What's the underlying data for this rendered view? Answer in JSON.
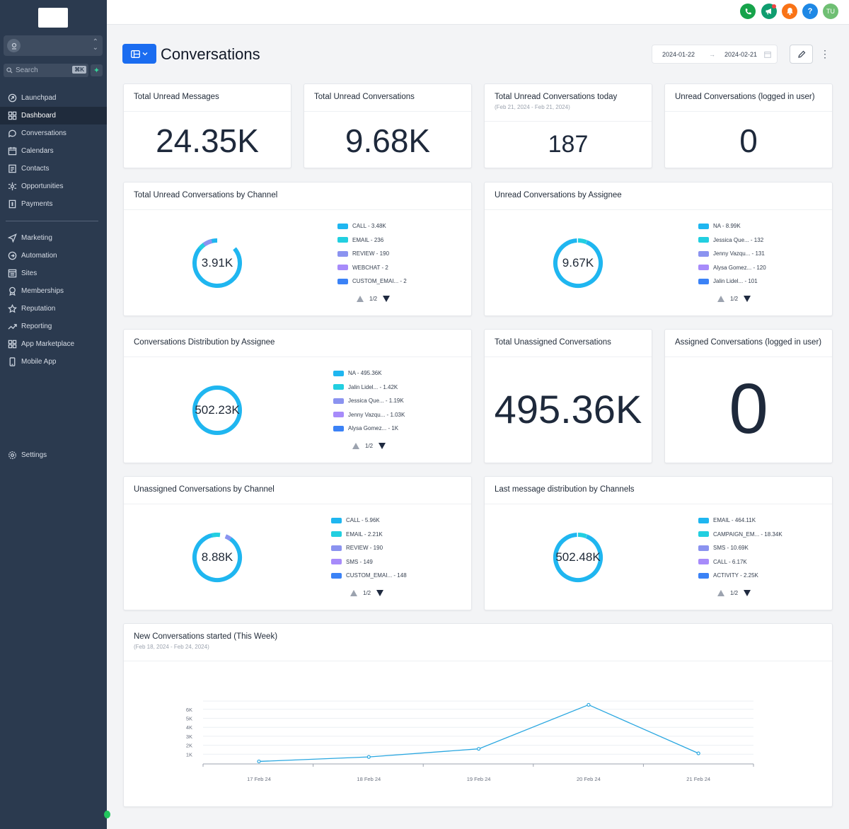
{
  "sidebar": {
    "search_placeholder": "Search",
    "search_shortcut": "⌘K",
    "items": [
      {
        "label": "Launchpad"
      },
      {
        "label": "Dashboard"
      },
      {
        "label": "Conversations"
      },
      {
        "label": "Calendars"
      },
      {
        "label": "Contacts"
      },
      {
        "label": "Opportunities"
      },
      {
        "label": "Payments"
      }
    ],
    "items2": [
      {
        "label": "Marketing"
      },
      {
        "label": "Automation"
      },
      {
        "label": "Sites"
      },
      {
        "label": "Memberships"
      },
      {
        "label": "Reputation"
      },
      {
        "label": "Reporting"
      },
      {
        "label": "App Marketplace"
      },
      {
        "label": "Mobile App"
      }
    ],
    "settings_label": "Settings"
  },
  "topbar": {
    "help_label": "?",
    "avatar_initials": "TU",
    "colors": {
      "phone": "#16a34a",
      "announce": "#0f9d6f",
      "bell": "#f97316",
      "help": "#1e88e5",
      "avatar": "#6fbf73"
    }
  },
  "header": {
    "title": "Conversations",
    "date_start": "2024-01-22",
    "date_end": "2024-02-21"
  },
  "stats": {
    "unread_messages": {
      "title": "Total Unread Messages",
      "value": "24.35K"
    },
    "unread_conversations": {
      "title": "Total Unread Conversations",
      "value": "9.68K"
    },
    "unread_today": {
      "title": "Total Unread Conversations today",
      "subtitle": "(Feb 21, 2024 - Feb 21, 2024)",
      "value": "187"
    },
    "unread_logged": {
      "title": "Unread Conversations (logged in user)",
      "value": "0"
    },
    "unassigned_total": {
      "title": "Total Unassigned Conversations",
      "value": "495.36K"
    },
    "assigned_logged": {
      "title": "Assigned Conversations (logged in user)",
      "value": "0"
    }
  },
  "donuts": {
    "by_channel": {
      "title": "Total Unread Conversations by Channel",
      "center": "3.91K",
      "legend": [
        "CALL - 3.48K",
        "EMAIL - 236",
        "REVIEW - 190",
        "WEBCHAT - 2",
        "CUSTOM_EMAI... - 2"
      ],
      "pager": "1/2"
    },
    "by_assignee": {
      "title": "Unread Conversations by Assignee",
      "center": "9.67K",
      "legend": [
        "NA - 8.99K",
        "Jessica Que... - 132",
        "Jenny Vazqu... - 131",
        "Alysa Gomez... - 120",
        "Jalin Lidel... - 101"
      ],
      "pager": "1/2"
    },
    "distribution": {
      "title": "Conversations Distribution by Assignee",
      "center": "502.23K",
      "legend": [
        "NA - 495.36K",
        "Jalin Lidel... - 1.42K",
        "Jessica Que... - 1.19K",
        "Jenny Vazqu... - 1.03K",
        "Alysa Gomez... - 1K"
      ],
      "pager": "1/2"
    },
    "unassigned_channel": {
      "title": "Unassigned Conversations by Channel",
      "center": "8.88K",
      "legend": [
        "CALL - 5.96K",
        "EMAIL - 2.21K",
        "REVIEW - 190",
        "SMS - 149",
        "CUSTOM_EMAI... - 148"
      ],
      "pager": "1/2"
    },
    "last_message": {
      "title": "Last message distribution by Channels",
      "center": "502.48K",
      "legend": [
        "EMAIL - 464.11K",
        "CAMPAIGN_EM... - 18.34K",
        "SMS - 10.69K",
        "CALL - 6.17K",
        "ACTIVITY - 2.25K"
      ],
      "pager": "1/2"
    }
  },
  "legend_colors": [
    "#1fb6f0",
    "#22cfe0",
    "#8b93f0",
    "#a78bfa",
    "#3b82f6"
  ],
  "line_chart": {
    "title": "New Conversations started (This Week)",
    "subtitle": "(Feb 18, 2024 - Feb 24, 2024)"
  },
  "chart_data": {
    "type": "line",
    "x": [
      "17 Feb 24",
      "18 Feb 24",
      "19 Feb 24",
      "20 Feb 24",
      "21 Feb 24"
    ],
    "series": [
      {
        "name": "New Conversations",
        "values": [
          200,
          700,
          1600,
          6500,
          1100
        ]
      }
    ],
    "yticks": [
      "1K",
      "2K",
      "3K",
      "4K",
      "5K",
      "6K"
    ],
    "ylim": [
      0,
      7000
    ],
    "color": "#2aa7e0"
  }
}
